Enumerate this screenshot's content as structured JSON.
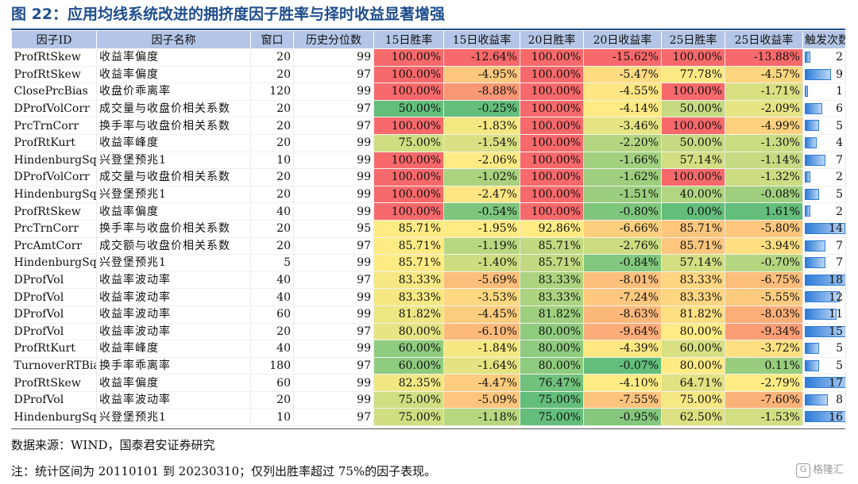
{
  "title": "图 22：应用均线系统改进的拥挤度因子胜率与择时收益显著增强",
  "table": {
    "headers": [
      "因子ID",
      "因子名称",
      "窗口",
      "历史分位数",
      "15日胜率",
      "15日收益率",
      "20日胜率",
      "20日收益率",
      "25日胜率",
      "25日收益率",
      "触发次数"
    ],
    "rows": [
      [
        "ProfRtSkew",
        "收益率偏度",
        "20",
        "99",
        "100.00%",
        "-12.64%",
        "100.00%",
        "-15.62%",
        "100.00%",
        "-13.88%",
        "2"
      ],
      [
        "ProfRtSkew",
        "收益率偏度",
        "20",
        "97",
        "100.00%",
        "-4.95%",
        "100.00%",
        "-5.47%",
        "77.78%",
        "-4.57%",
        "9"
      ],
      [
        "ClosePrcBias",
        "收盘价乖离率",
        "120",
        "99",
        "100.00%",
        "-8.88%",
        "100.00%",
        "-4.55%",
        "100.00%",
        "-1.71%",
        "1"
      ],
      [
        "DProfVolCorr",
        "成交量与收盘价相关系数",
        "20",
        "97",
        "50.00%",
        "-0.25%",
        "100.00%",
        "-4.14%",
        "50.00%",
        "-2.09%",
        "6"
      ],
      [
        "PrcTrnCorr",
        "换手率与收盘价相关系数",
        "20",
        "97",
        "100.00%",
        "-1.83%",
        "100.00%",
        "-3.46%",
        "100.00%",
        "-4.99%",
        "5"
      ],
      [
        "ProfRtKurt",
        "收益率峰度",
        "20",
        "99",
        "75.00%",
        "-1.54%",
        "100.00%",
        "-2.20%",
        "50.00%",
        "-1.30%",
        "4"
      ],
      [
        "HindenburgSqrt",
        "兴登堡预兆1",
        "10",
        "99",
        "100.00%",
        "-2.06%",
        "100.00%",
        "-1.66%",
        "57.14%",
        "-1.14%",
        "7"
      ],
      [
        "DProfVolCorr",
        "成交量与收盘价相关系数",
        "20",
        "99",
        "100.00%",
        "-1.02%",
        "100.00%",
        "-1.62%",
        "100.00%",
        "-1.32%",
        "2"
      ],
      [
        "HindenburgSqrt",
        "兴登堡预兆1",
        "20",
        "99",
        "100.00%",
        "-2.47%",
        "100.00%",
        "-1.51%",
        "40.00%",
        "-0.08%",
        "5"
      ],
      [
        "ProfRtSkew",
        "收益率偏度",
        "40",
        "99",
        "100.00%",
        "-0.54%",
        "100.00%",
        "-0.80%",
        "0.00%",
        "1.61%",
        "2"
      ],
      [
        "PrcTrnCorr",
        "换手率与收盘价相关系数",
        "20",
        "95",
        "85.71%",
        "-1.95%",
        "92.86%",
        "-6.66%",
        "85.71%",
        "-5.80%",
        "14"
      ],
      [
        "PrcAmtCorr",
        "成交额与收盘价相关系数",
        "20",
        "97",
        "85.71%",
        "-1.19%",
        "85.71%",
        "-2.76%",
        "85.71%",
        "-3.94%",
        "7"
      ],
      [
        "HindenburgSqrt",
        "兴登堡预兆1",
        "5",
        "99",
        "85.71%",
        "-1.40%",
        "85.71%",
        "-0.84%",
        "57.14%",
        "-0.70%",
        "7"
      ],
      [
        "DProfVol",
        "收益率波动率",
        "40",
        "97",
        "83.33%",
        "-5.69%",
        "83.33%",
        "-8.01%",
        "83.33%",
        "-6.75%",
        "18"
      ],
      [
        "DProfVol",
        "收益率波动率",
        "40",
        "99",
        "83.33%",
        "-3.53%",
        "83.33%",
        "-7.24%",
        "83.33%",
        "-5.55%",
        "12"
      ],
      [
        "DProfVol",
        "收益率波动率",
        "60",
        "99",
        "81.82%",
        "-4.45%",
        "81.82%",
        "-8.63%",
        "81.82%",
        "-8.03%",
        "11"
      ],
      [
        "DProfVol",
        "收益率波动率",
        "20",
        "97",
        "80.00%",
        "-6.10%",
        "80.00%",
        "-9.64%",
        "80.00%",
        "-9.34%",
        "15"
      ],
      [
        "ProfRtKurt",
        "收益率峰度",
        "40",
        "99",
        "60.00%",
        "-1.84%",
        "80.00%",
        "-4.39%",
        "60.00%",
        "-3.72%",
        "5"
      ],
      [
        "TurnoverRTBias",
        "换手率乖离率",
        "180",
        "97",
        "60.00%",
        "-1.64%",
        "80.00%",
        "-0.07%",
        "80.00%",
        "0.11%",
        "5"
      ],
      [
        "ProfRtSkew",
        "收益率偏度",
        "60",
        "99",
        "82.35%",
        "-4.47%",
        "76.47%",
        "-4.10%",
        "64.71%",
        "-2.79%",
        "17"
      ],
      [
        "DProfVol",
        "收益率波动率",
        "20",
        "99",
        "75.00%",
        "-5.09%",
        "75.00%",
        "-7.55%",
        "75.00%",
        "-7.60%",
        "8"
      ],
      [
        "HindenburgSqrt",
        "兴登堡预兆1",
        "10",
        "97",
        "75.00%",
        "-1.18%",
        "75.00%",
        "-0.95%",
        "62.50%",
        "-1.53%",
        "16"
      ]
    ]
  },
  "source": "数据来源：WIND，国泰君安证券研究",
  "note": "注：统计区间为 20110101 到 20230310；仅列出胜率超过 75%的因子表现。",
  "watermark": "格隆汇",
  "colors": {
    "title": "#1f4e8c",
    "header_bg": "#b4c6e7",
    "scale_low": "#63be7b",
    "scale_mid": "#ffeb84",
    "scale_high": "#f8696b",
    "bar": "#2e7bd6"
  }
}
